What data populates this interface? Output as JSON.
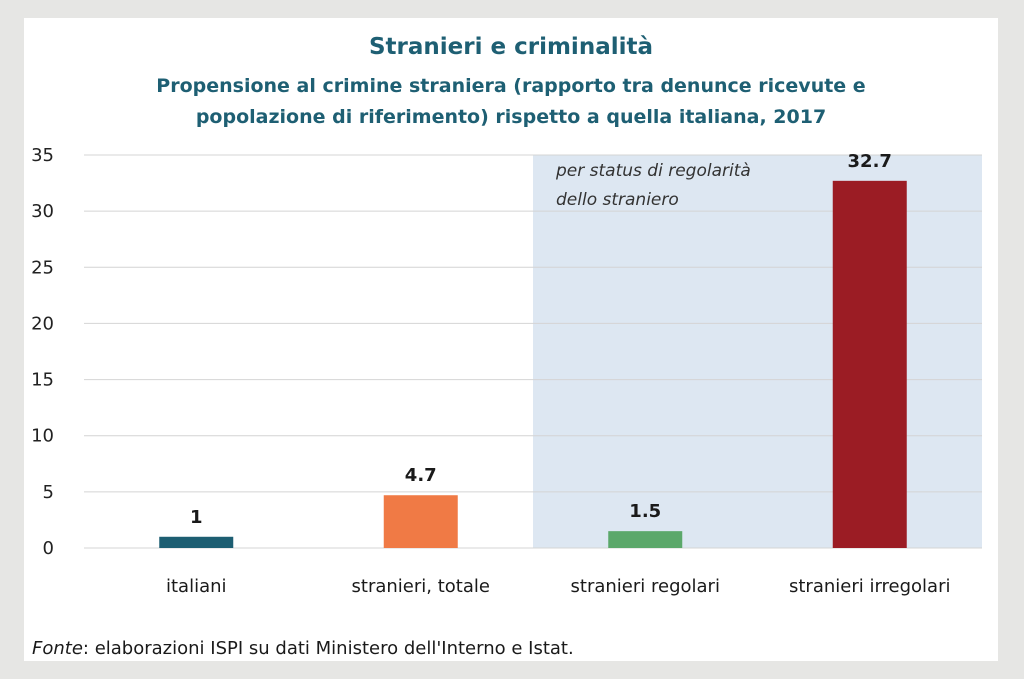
{
  "header": {
    "title": "Stranieri e criminalità",
    "subtitle_line1": "Propensione al crimine straniera (rapporto tra denunce ricevute e",
    "subtitle_line2": "popolazione di riferimento) rispetto a quella italiana, 2017"
  },
  "source": {
    "label": "Fonte",
    "text": ": elaborazioni ISPI su dati Ministero dell'Interno e Istat."
  },
  "colors": {
    "title": "#1e5f73",
    "highlight_band": "#dde7f2",
    "grid": "#d4d4d4"
  },
  "chart_data": {
    "type": "bar",
    "categories": [
      "italiani",
      "stranieri, totale",
      "stranieri regolari",
      "stranieri irregolari"
    ],
    "values": [
      1,
      4.7,
      1.5,
      32.7
    ],
    "data_labels": [
      "1",
      "4.7",
      "1.5",
      "32.7"
    ],
    "bar_colors": [
      "#1d5e72",
      "#f07a45",
      "#5ba86a",
      "#9b1c24"
    ],
    "ylim": [
      0,
      35
    ],
    "yticks": [
      0,
      5,
      10,
      15,
      20,
      25,
      30,
      35
    ],
    "grid": true,
    "legend": "none",
    "annotation": {
      "line1": "per status di regolarità",
      "line2": "dello straniero",
      "spans_categories": [
        "stranieri regolari",
        "stranieri irregolari"
      ]
    }
  }
}
